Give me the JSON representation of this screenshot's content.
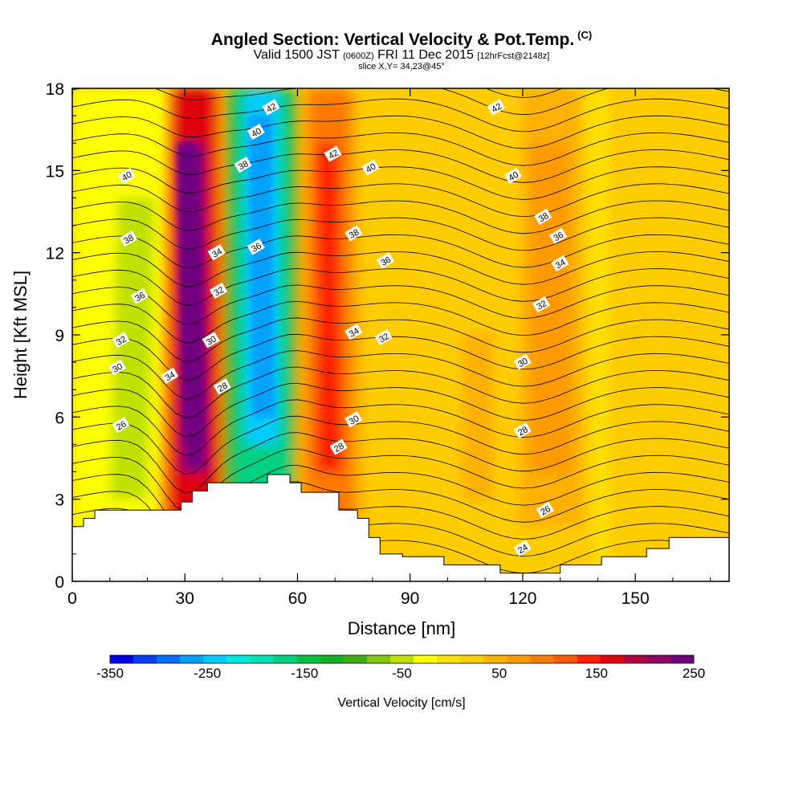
{
  "chart_data": {
    "type": "heatmap",
    "title": "Angled Section: Vertical Velocity & Pot.Temp.",
    "title_unit": "(C)",
    "subtitle_main": "Valid 1500 JST",
    "subtitle_z": "(0600Z)",
    "subtitle_date": "FRI 11 Dec 2015",
    "subtitle_fcst": "[12hrFcst@2148z]",
    "slice_text": "slice X,Y= 34,23@45°",
    "xlabel": "Distance [nm]",
    "ylabel": "Height [Kft MSL]",
    "xlim": [
      0,
      175
    ],
    "ylim": [
      0,
      18
    ],
    "x_ticks": [
      0,
      30,
      60,
      90,
      120,
      150
    ],
    "y_ticks": [
      0,
      3,
      6,
      9,
      12,
      15,
      18
    ],
    "colorbar": {
      "title": "Vertical Velocity [cm/s]",
      "range": [
        -350,
        250
      ],
      "tick_labels": [
        -350,
        -250,
        -150,
        -50,
        50,
        150,
        250
      ],
      "colors": [
        "#0000e0",
        "#0040f0",
        "#0070ff",
        "#00a0ff",
        "#00ccff",
        "#00e8e0",
        "#00e0b0",
        "#00d080",
        "#00c040",
        "#10b020",
        "#40b010",
        "#80c810",
        "#c0e000",
        "#ffff00",
        "#ffe000",
        "#ffcc00",
        "#ffb000",
        "#ff9a00",
        "#ff7a00",
        "#ff5a00",
        "#ff2000",
        "#e00010",
        "#b00040",
        "#900060",
        "#700080"
      ]
    },
    "velocity_features": [
      {
        "name": "strong updraft",
        "x_range": [
          27,
          38
        ],
        "z_top": 18,
        "peak_cm_s": 250
      },
      {
        "name": "strong downdraft",
        "x_range": [
          43,
          58
        ],
        "z_top": 18,
        "peak_cm_s": -250
      },
      {
        "name": "updraft",
        "x_range": [
          63,
          74
        ],
        "z_top": 18,
        "peak_cm_s": 150
      },
      {
        "name": "weak downdraft",
        "x_range": [
          10,
          20
        ],
        "z_top": 14,
        "peak_cm_s": -60
      },
      {
        "name": "weak updraft",
        "x_range": [
          120,
          135
        ],
        "z_top": 18,
        "peak_cm_s": 60
      }
    ],
    "terrain": [
      [
        0,
        2
      ],
      [
        3,
        2
      ],
      [
        3,
        2.3
      ],
      [
        6,
        2.3
      ],
      [
        6,
        2.6
      ],
      [
        29,
        2.6
      ],
      [
        29,
        2.9
      ],
      [
        32,
        2.9
      ],
      [
        32,
        3.3
      ],
      [
        36,
        3.3
      ],
      [
        36,
        3.6
      ],
      [
        52,
        3.6
      ],
      [
        52,
        3.9
      ],
      [
        58,
        3.9
      ],
      [
        58,
        3.6
      ],
      [
        61,
        3.6
      ],
      [
        61,
        3.25
      ],
      [
        71,
        3.25
      ],
      [
        71,
        2.6
      ],
      [
        76,
        2.6
      ],
      [
        76,
        2.3
      ],
      [
        79,
        2.3
      ],
      [
        79,
        1.6
      ],
      [
        82,
        1.6
      ],
      [
        82,
        1.0
      ],
      [
        88,
        1.0
      ],
      [
        88,
        0.9
      ],
      [
        99,
        0.9
      ],
      [
        99,
        0.6
      ],
      [
        114,
        0.6
      ],
      [
        114,
        0.3
      ],
      [
        130,
        0.3
      ],
      [
        130,
        0.6
      ],
      [
        141,
        0.6
      ],
      [
        141,
        0.9
      ],
      [
        153,
        0.9
      ],
      [
        153,
        1.2
      ],
      [
        159,
        1.2
      ],
      [
        159,
        1.6
      ],
      [
        175,
        1.6
      ]
    ],
    "contour_labels": [
      {
        "text": "42",
        "x": 53,
        "z": 17.3
      },
      {
        "text": "40",
        "x": 49,
        "z": 16.4
      },
      {
        "text": "38",
        "x": 45.5,
        "z": 15.2
      },
      {
        "text": "42",
        "x": 69.5,
        "z": 15.6
      },
      {
        "text": "40",
        "x": 79.5,
        "z": 15.1
      },
      {
        "text": "42",
        "x": 113,
        "z": 17.3
      },
      {
        "text": "40",
        "x": 117.5,
        "z": 14.8
      },
      {
        "text": "40",
        "x": 14.5,
        "z": 14.8
      },
      {
        "text": "38",
        "x": 125.5,
        "z": 13.3
      },
      {
        "text": "38",
        "x": 15,
        "z": 12.5
      },
      {
        "text": "38",
        "x": 75,
        "z": 12.7
      },
      {
        "text": "36",
        "x": 129.5,
        "z": 12.6
      },
      {
        "text": "36",
        "x": 49,
        "z": 12.2
      },
      {
        "text": "34",
        "x": 38.5,
        "z": 12.0
      },
      {
        "text": "36",
        "x": 83.5,
        "z": 11.7
      },
      {
        "text": "34",
        "x": 130,
        "z": 11.6
      },
      {
        "text": "32",
        "x": 39,
        "z": 10.6
      },
      {
        "text": "36",
        "x": 18,
        "z": 10.4
      },
      {
        "text": "32",
        "x": 125,
        "z": 10.1
      },
      {
        "text": "34",
        "x": 75,
        "z": 9.1
      },
      {
        "text": "32",
        "x": 83,
        "z": 8.9
      },
      {
        "text": "32",
        "x": 13,
        "z": 8.8
      },
      {
        "text": "30",
        "x": 37,
        "z": 8.8
      },
      {
        "text": "30",
        "x": 120,
        "z": 8.0
      },
      {
        "text": "30",
        "x": 12,
        "z": 7.8
      },
      {
        "text": "34",
        "x": 26,
        "z": 7.5
      },
      {
        "text": "28",
        "x": 40,
        "z": 7.1
      },
      {
        "text": "30",
        "x": 75,
        "z": 5.9
      },
      {
        "text": "26",
        "x": 13,
        "z": 5.7
      },
      {
        "text": "28",
        "x": 120,
        "z": 5.5
      },
      {
        "text": "28",
        "x": 71,
        "z": 4.9
      },
      {
        "text": "26",
        "x": 126,
        "z": 2.6
      },
      {
        "text": "24",
        "x": 120,
        "z": 1.2
      }
    ]
  }
}
